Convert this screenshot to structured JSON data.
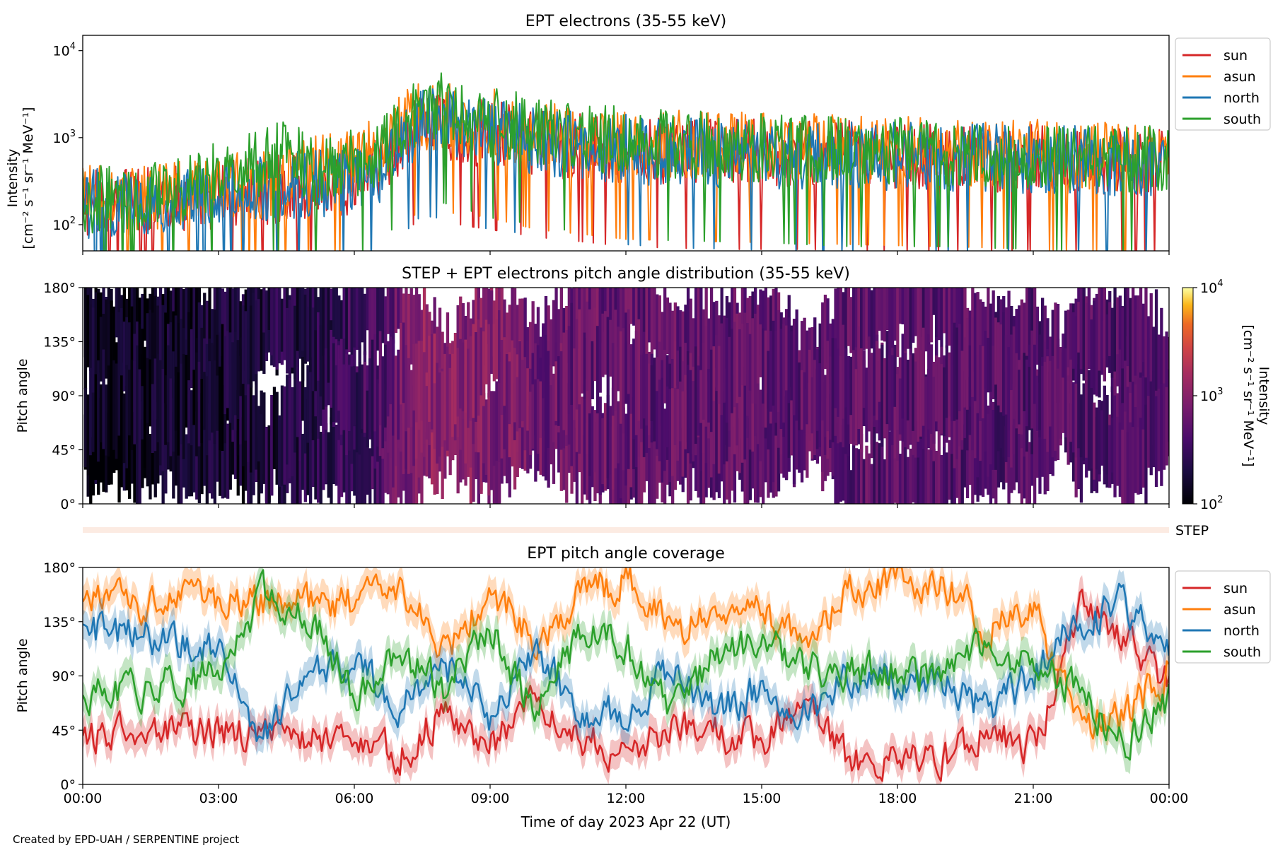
{
  "footer": "Created by EPD-UAH / SERPENTINE project",
  "colors": {
    "sun": "#d62728",
    "asun": "#ff7f0e",
    "north": "#1f77b4",
    "south": "#2ca02c",
    "step_strip": "#fcebe2"
  },
  "chart_data": [
    {
      "type": "line",
      "title": "EPT electrons (35-55 keV)",
      "ylabel_line1": "Intensity",
      "ylabel_line2": "[cm⁻² s⁻¹ sr⁻¹ MeV⁻¹]",
      "yscale": "log",
      "ylim": [
        50,
        15000
      ],
      "ytick_labels": [
        {
          "value": 100,
          "label": "10",
          "exp": "2"
        },
        {
          "value": 1000,
          "label": "10",
          "exp": "3"
        },
        {
          "value": 10000,
          "label": "10",
          "exp": "4"
        }
      ],
      "x_unit": "hours",
      "xlim": [
        0,
        24
      ],
      "legend_position": "outside-right-top",
      "series": [
        {
          "name": "sun",
          "knots": [
            [
              0,
              180
            ],
            [
              2,
              200
            ],
            [
              4,
              240
            ],
            [
              6,
              320
            ],
            [
              6.8,
              600
            ],
            [
              7.5,
              1500
            ],
            [
              8.5,
              1200
            ],
            [
              10,
              900
            ],
            [
              12,
              700
            ],
            [
              14,
              650
            ],
            [
              16,
              650
            ],
            [
              18,
              600
            ],
            [
              20,
              600
            ],
            [
              22,
              550
            ],
            [
              24,
              500
            ]
          ]
        },
        {
          "name": "asun",
          "knots": [
            [
              0,
              190
            ],
            [
              2,
              220
            ],
            [
              4,
              300
            ],
            [
              5,
              420
            ],
            [
              6.5,
              650
            ],
            [
              7.5,
              1800
            ],
            [
              8.7,
              1600
            ],
            [
              10,
              1100
            ],
            [
              12,
              850
            ],
            [
              14,
              800
            ],
            [
              16,
              760
            ],
            [
              18,
              720
            ],
            [
              20,
              680
            ],
            [
              22,
              620
            ],
            [
              24,
              560
            ]
          ]
        },
        {
          "name": "north",
          "knots": [
            [
              0,
              170
            ],
            [
              2,
              200
            ],
            [
              4,
              260
            ],
            [
              6,
              320
            ],
            [
              6.8,
              500
            ],
            [
              7.5,
              1600
            ],
            [
              9,
              1100
            ],
            [
              11,
              800
            ],
            [
              13,
              680
            ],
            [
              15,
              640
            ],
            [
              17,
              600
            ],
            [
              19,
              600
            ],
            [
              21,
              560
            ],
            [
              23,
              530
            ],
            [
              24,
              500
            ]
          ]
        },
        {
          "name": "south",
          "knots": [
            [
              0,
              190
            ],
            [
              2,
              230
            ],
            [
              4,
              500
            ],
            [
              4.5,
              700
            ],
            [
              5.2,
              350
            ],
            [
              6.5,
              600
            ],
            [
              7.7,
              2400
            ],
            [
              9,
              1500
            ],
            [
              11,
              1000
            ],
            [
              13,
              820
            ],
            [
              15,
              780
            ],
            [
              17,
              700
            ],
            [
              19,
              700
            ],
            [
              21,
              650
            ],
            [
              23,
              600
            ],
            [
              24,
              560
            ]
          ]
        }
      ]
    },
    {
      "type": "heatmap",
      "title": "STEP + EPT electrons pitch angle distribution (35-55 keV)",
      "ylabel": "Pitch angle",
      "ylim": [
        0,
        180
      ],
      "ytick_labels": [
        "0°",
        "45°",
        "90°",
        "135°",
        "180°"
      ],
      "xlim": [
        0,
        24
      ],
      "colorbar": {
        "label_line1": "Intensity",
        "label_line2": "[cm⁻² s⁻¹ sr⁻¹ MeV⁻¹]",
        "scale": "log",
        "range": [
          100,
          10000
        ],
        "tick_labels": [
          {
            "value": 100,
            "label": "10",
            "exp": "2"
          },
          {
            "value": 1000,
            "label": "10",
            "exp": "3"
          },
          {
            "value": 10000,
            "label": "10",
            "exp": "4"
          }
        ],
        "colormap": "inferno"
      },
      "intensity_knots": [
        [
          0,
          120
        ],
        [
          3,
          160
        ],
        [
          5,
          230
        ],
        [
          6.5,
          380
        ],
        [
          7.5,
          1000
        ],
        [
          9,
          900
        ],
        [
          10,
          650
        ],
        [
          12,
          560
        ],
        [
          15,
          520
        ],
        [
          18,
          480
        ],
        [
          21,
          460
        ],
        [
          24,
          440
        ]
      ]
    },
    {
      "type": "strip",
      "label": "STEP"
    },
    {
      "type": "line",
      "title": "EPT pitch angle coverage",
      "ylabel": "Pitch angle",
      "ylim": [
        0,
        180
      ],
      "ytick_labels": [
        "0°",
        "45°",
        "90°",
        "135°",
        "180°"
      ],
      "xlabel": "Time of day 2023 Apr 22 (UT)",
      "xlim": [
        0,
        24
      ],
      "xtick_labels": [
        "00:00",
        "03:00",
        "06:00",
        "09:00",
        "12:00",
        "15:00",
        "18:00",
        "21:00",
        "00:00"
      ],
      "legend_position": "outside-right-top",
      "series": [
        {
          "name": "sun",
          "knots": [
            [
              0,
              40
            ],
            [
              3,
              45
            ],
            [
              6,
              35
            ],
            [
              7,
              25
            ],
            [
              8,
              60
            ],
            [
              9,
              30
            ],
            [
              10,
              70
            ],
            [
              11,
              40
            ],
            [
              12,
              25
            ],
            [
              13,
              50
            ],
            [
              15,
              35
            ],
            [
              16,
              75
            ],
            [
              17,
              15
            ],
            [
              19,
              20
            ],
            [
              20,
              45
            ],
            [
              21,
              30
            ],
            [
              21.7,
              110
            ],
            [
              22,
              150
            ],
            [
              23,
              120
            ],
            [
              24,
              85
            ]
          ]
        },
        {
          "name": "asun",
          "knots": [
            [
              0,
              150
            ],
            [
              3,
              150
            ],
            [
              6,
              150
            ],
            [
              7,
              160
            ],
            [
              8,
              110
            ],
            [
              9,
              160
            ],
            [
              10,
              120
            ],
            [
              11,
              160
            ],
            [
              12,
              170
            ],
            [
              13,
              130
            ],
            [
              15,
              145
            ],
            [
              16,
              110
            ],
            [
              17,
              165
            ],
            [
              19,
              170
            ],
            [
              20,
              130
            ],
            [
              21,
              150
            ],
            [
              21.7,
              75
            ],
            [
              22,
              45
            ],
            [
              23,
              55
            ],
            [
              24,
              95
            ]
          ]
        },
        {
          "name": "north",
          "knots": [
            [
              0,
              130
            ],
            [
              3,
              110
            ],
            [
              4,
              40
            ],
            [
              5,
              90
            ],
            [
              6,
              100
            ],
            [
              7,
              60
            ],
            [
              8,
              100
            ],
            [
              9,
              55
            ],
            [
              10,
              110
            ],
            [
              11,
              60
            ],
            [
              12,
              55
            ],
            [
              13,
              100
            ],
            [
              14,
              60
            ],
            [
              15,
              80
            ],
            [
              16,
              60
            ],
            [
              17,
              90
            ],
            [
              19,
              85
            ],
            [
              20,
              60
            ],
            [
              21,
              90
            ],
            [
              21.7,
              125
            ],
            [
              23,
              150
            ],
            [
              24,
              110
            ]
          ]
        },
        {
          "name": "south",
          "knots": [
            [
              0,
              70
            ],
            [
              3,
              90
            ],
            [
              4,
              160
            ],
            [
              5,
              140
            ],
            [
              6,
              75
            ],
            [
              7,
              105
            ],
            [
              8,
              80
            ],
            [
              9,
              130
            ],
            [
              10,
              60
            ],
            [
              11,
              125
            ],
            [
              12,
              115
            ],
            [
              13,
              55
            ],
            [
              14,
              110
            ],
            [
              15,
              120
            ],
            [
              16,
              95
            ],
            [
              17,
              95
            ],
            [
              19,
              90
            ],
            [
              20,
              120
            ],
            [
              21,
              95
            ],
            [
              21.7,
              85
            ],
            [
              23,
              35
            ],
            [
              24,
              70
            ]
          ]
        }
      ]
    }
  ]
}
